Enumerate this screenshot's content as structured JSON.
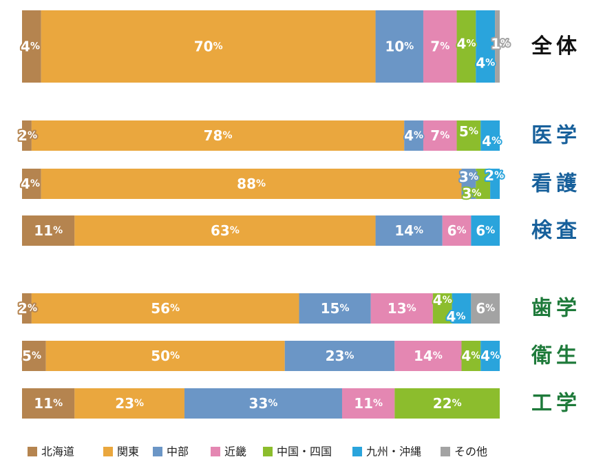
{
  "chart_data": {
    "type": "bar",
    "orientation": "horizontal-stacked-100",
    "unit_suffix": "%",
    "series": [
      {
        "name": "北海道",
        "color": "#b5844f"
      },
      {
        "name": "関東",
        "color": "#eaa73e"
      },
      {
        "name": "中部",
        "color": "#6b96c6"
      },
      {
        "name": "近畿",
        "color": "#e487b2"
      },
      {
        "name": "中国・四国",
        "color": "#8cbd2d"
      },
      {
        "name": "九州・沖縄",
        "color": "#2aa4dc"
      },
      {
        "name": "その他",
        "color": "#a3a3a3"
      }
    ],
    "rows": [
      {
        "label": "全体",
        "label_color": "#111111",
        "values": [
          4,
          70,
          10,
          7,
          4,
          4,
          1
        ]
      },
      {
        "label": "医学",
        "label_color": "#17609b",
        "values": [
          2,
          78,
          4,
          7,
          5,
          4,
          0
        ]
      },
      {
        "label": "看護",
        "label_color": "#17609b",
        "values": [
          4,
          88,
          3,
          0,
          3,
          2,
          0
        ]
      },
      {
        "label": "検査",
        "label_color": "#17609b",
        "values": [
          11,
          63,
          14,
          6,
          0,
          6,
          0
        ]
      },
      {
        "label": "歯学",
        "label_color": "#1e7a3a",
        "values": [
          2,
          56,
          15,
          13,
          4,
          4,
          6
        ]
      },
      {
        "label": "衛生",
        "label_color": "#1e7a3a",
        "values": [
          5,
          50,
          23,
          14,
          4,
          4,
          0
        ]
      },
      {
        "label": "工学",
        "label_color": "#1e7a3a",
        "values": [
          11,
          23,
          33,
          11,
          22,
          0,
          0
        ]
      }
    ],
    "xlim": [
      0,
      100
    ],
    "legend_position": "bottom"
  }
}
